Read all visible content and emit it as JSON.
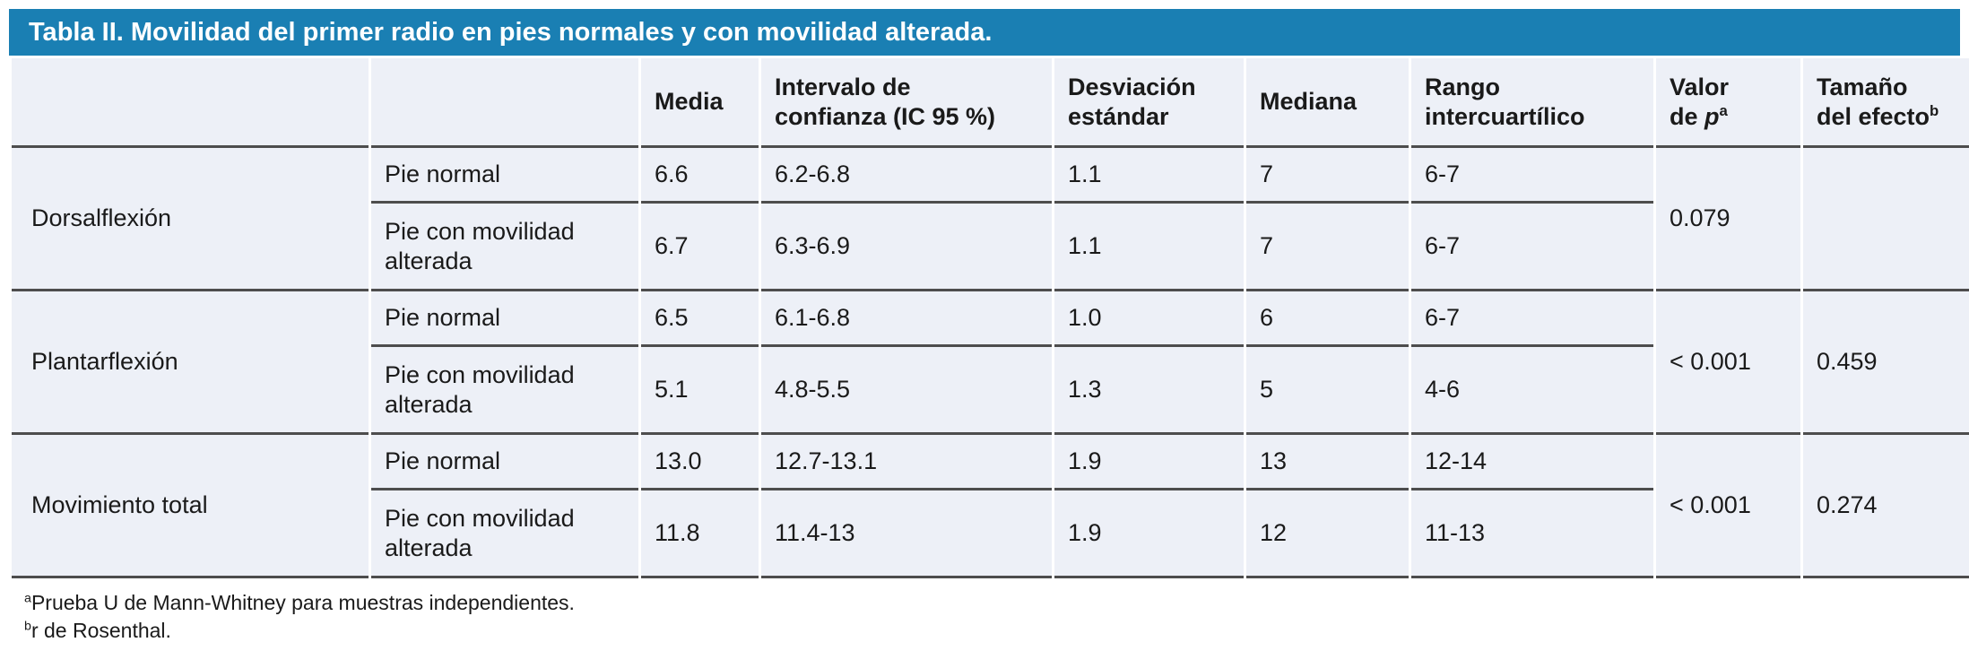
{
  "colors": {
    "header_bar": "#1A7FB3",
    "table_bg": "#EDF0F7",
    "rule": "#4D4D4D",
    "title_text": "#FFFFFF",
    "body_text": "#1A1A1A"
  },
  "title": "Tabla II. Movilidad del primer radio en pies normales y con movilidad alterada.",
  "table": {
    "headers": {
      "media": "Media",
      "ic": {
        "line1": "Intervalo de",
        "line2": "confianza (IC 95 %)"
      },
      "sd": {
        "line1": "Desviación",
        "line2": "estándar"
      },
      "mediana": "Mediana",
      "rango": {
        "line1": "Rango",
        "line2": "intercuartílico"
      },
      "p": {
        "line1": "Valor",
        "line2_prefix": "de ",
        "line2_italic": "p",
        "sup": "a"
      },
      "effect": {
        "line1": "Tamaño",
        "line2": "del efecto",
        "sup": "b"
      }
    },
    "groups": [
      {
        "label": "Dorsalflexión",
        "p_value": "0.079",
        "effect_size": "",
        "rows": [
          {
            "condition": "Pie normal",
            "media": "6.6",
            "ic": "6.2-6.8",
            "sd": "1.1",
            "mediana": "7",
            "rango": "6-7"
          },
          {
            "condition": "Pie con movilidad alterada",
            "media": "6.7",
            "ic": "6.3-6.9",
            "sd": "1.1",
            "mediana": "7",
            "rango": "6-7"
          }
        ]
      },
      {
        "label": "Plantarflexión",
        "p_value": "< 0.001",
        "effect_size": "0.459",
        "rows": [
          {
            "condition": "Pie normal",
            "media": "6.5",
            "ic": "6.1-6.8",
            "sd": "1.0",
            "mediana": "6",
            "rango": "6-7"
          },
          {
            "condition": "Pie con movilidad alterada",
            "media": "5.1",
            "ic": "4.8-5.5",
            "sd": "1.3",
            "mediana": "5",
            "rango": "4-6"
          }
        ]
      },
      {
        "label": "Movimiento total",
        "p_value": "< 0.001",
        "effect_size": "0.274",
        "rows": [
          {
            "condition": "Pie normal",
            "media": "13.0",
            "ic": "12.7-13.1",
            "sd": "1.9",
            "mediana": "13",
            "rango": "12-14"
          },
          {
            "condition": "Pie con movilidad alterada",
            "media": "11.8",
            "ic": "11.4-13",
            "sd": "1.9",
            "mediana": "12",
            "rango": "11-13"
          }
        ]
      }
    ]
  },
  "footnotes": [
    {
      "sup": "a",
      "text": "Prueba U de Mann-Whitney para muestras independientes."
    },
    {
      "sup": "b",
      "text": "r de Rosenthal."
    }
  ]
}
